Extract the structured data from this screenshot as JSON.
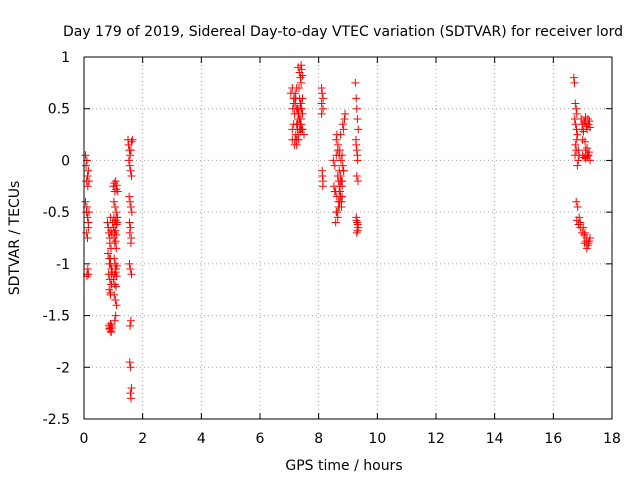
{
  "chart_data": {
    "type": "scatter",
    "title": "Day 179 of 2019, Sidereal Day-to-day VTEC variation (SDTVAR) for receiver lord",
    "xlabel": "GPS time / hours",
    "ylabel": "SDTVAR / TECUs",
    "xlim": [
      0,
      18
    ],
    "ylim": [
      -2.5,
      1
    ],
    "xticks": [
      "0",
      "2",
      "4",
      "6",
      "8",
      "10",
      "12",
      "14",
      "16",
      "18"
    ],
    "xtick_values": [
      0,
      2,
      4,
      6,
      8,
      10,
      12,
      14,
      16,
      18
    ],
    "yticks": [
      "1",
      "0.5",
      "0",
      "-0.5",
      "-1",
      "-1.5",
      "-2",
      "-2.5"
    ],
    "ytick_values": [
      1,
      0.5,
      0,
      -0.5,
      -1,
      -1.5,
      -2,
      -2.5
    ],
    "grid": true,
    "marker": "+",
    "color": "#ff0000",
    "series": [
      {
        "name": "SDTVAR",
        "x": [
          0.05,
          0.07,
          0.08,
          0.1,
          0.12,
          0.13,
          0.15,
          0.17,
          0.05,
          0.08,
          0.1,
          0.12,
          0.15,
          0.17,
          0.08,
          0.12,
          0.15,
          0.1,
          0.13,
          0.1,
          0.15,
          0.8,
          0.83,
          0.85,
          0.88,
          0.9,
          0.92,
          0.95,
          0.97,
          0.82,
          0.86,
          0.9,
          0.93,
          0.96,
          0.84,
          0.88,
          0.92,
          0.95,
          0.86,
          0.9,
          0.94,
          0.85,
          0.88,
          0.91,
          0.94,
          0.86,
          0.9,
          0.93,
          0.96,
          0.88,
          0.92,
          0.87,
          0.9,
          0.94,
          0.9,
          1.0,
          1.03,
          1.05,
          1.08,
          1.1,
          1.12,
          1.15,
          1.02,
          1.05,
          1.08,
          1.11,
          1.14,
          1.0,
          1.04,
          1.07,
          1.1,
          1.13,
          1.02,
          1.05,
          1.08,
          1.1,
          1.03,
          1.06,
          1.09,
          1.12,
          1.04,
          1.08,
          1.11,
          1.05,
          1.09,
          1.02,
          1.06,
          1.1,
          1.13,
          1.0,
          1.03,
          1.07,
          1.11,
          1.05,
          1.08,
          1.5,
          1.52,
          1.55,
          1.57,
          1.6,
          1.62,
          1.65,
          1.53,
          1.56,
          1.59,
          1.62,
          1.54,
          1.57,
          1.6,
          1.63,
          1.55,
          1.58,
          1.61,
          1.56,
          1.6,
          1.55,
          1.58,
          1.62,
          1.57,
          1.6,
          1.56,
          1.59,
          1.62,
          1.58,
          1.6,
          7.05,
          7.1,
          7.15,
          7.2,
          7.25,
          7.3,
          7.35,
          7.4,
          7.45,
          7.5,
          7.1,
          7.15,
          7.2,
          7.25,
          7.3,
          7.35,
          7.4,
          7.45,
          7.12,
          7.18,
          7.22,
          7.28,
          7.32,
          7.38,
          7.42,
          7.15,
          7.2,
          7.25,
          7.3,
          7.35,
          7.4,
          7.1,
          7.18,
          7.25,
          7.32,
          7.38,
          7.2,
          7.28,
          7.35,
          7.42,
          7.22,
          7.3,
          7.38,
          7.25,
          7.33,
          7.4,
          7.28,
          7.35,
          7.45,
          7.3,
          7.42,
          7.35,
          7.4,
          7.38,
          7.45,
          7.33,
          7.4,
          8.1,
          8.12,
          8.15,
          8.1,
          8.13,
          8.15,
          8.12,
          8.14,
          8.1,
          8.15,
          8.5,
          8.55,
          8.6,
          8.65,
          8.7,
          8.75,
          8.8,
          8.85,
          8.52,
          8.58,
          8.62,
          8.68,
          8.72,
          8.78,
          8.55,
          8.6,
          8.65,
          8.7,
          8.75,
          8.8,
          8.58,
          8.63,
          8.68,
          8.73,
          8.78,
          8.6,
          8.66,
          8.72,
          8.62,
          8.7,
          8.76,
          8.82,
          8.65,
          8.72,
          8.8,
          8.68,
          8.75,
          8.85,
          8.7,
          8.78,
          8.85,
          8.75,
          8.82,
          8.88,
          8.9,
          8.8,
          9.25,
          9.28,
          9.3,
          9.32,
          9.35,
          9.27,
          9.3,
          9.33,
          9.28,
          9.32,
          9.3,
          9.34,
          9.28,
          9.31,
          9.35,
          9.3,
          9.33,
          9.29,
          9.32,
          16.7,
          16.72,
          16.75,
          16.78,
          16.8,
          16.73,
          16.76,
          16.79,
          16.82,
          16.74,
          16.78,
          16.82,
          16.85,
          16.75,
          16.8,
          16.85,
          16.88,
          16.78,
          16.83,
          16.88,
          16.92,
          16.8,
          16.86,
          16.92,
          16.95,
          17.0,
          17.05,
          17.1,
          17.15,
          17.2,
          17.25,
          16.98,
          17.03,
          17.08,
          17.13,
          17.18,
          17.23,
          17.0,
          17.05,
          17.1,
          17.15,
          17.2,
          17.02,
          17.08,
          17.14,
          17.2,
          17.05,
          17.12,
          17.18,
          17.25,
          16.98,
          17.06,
          17.14,
          17.22,
          17.1,
          17.18,
          17.25,
          17.0,
          17.08,
          17.15,
          17.22
        ],
        "y": [
          0.05,
          -0.05,
          -0.2,
          0.0,
          -0.15,
          -0.25,
          -0.1,
          -0.2,
          -0.4,
          -0.5,
          -0.45,
          -0.55,
          -0.6,
          -0.5,
          -0.7,
          -0.75,
          -0.65,
          -1.1,
          -1.05,
          -1.12,
          -1.1,
          -0.6,
          -0.65,
          -0.7,
          -0.75,
          -0.55,
          -0.68,
          -0.72,
          -0.6,
          -0.9,
          -0.95,
          -1.0,
          -1.05,
          -1.08,
          -1.1,
          -1.15,
          -1.2,
          -1.05,
          -1.25,
          -1.3,
          -1.2,
          -1.6,
          -1.62,
          -1.65,
          -1.6,
          -1.63,
          -1.58,
          -1.66,
          -1.62,
          -0.8,
          -0.85,
          -1.0,
          -0.95,
          -1.1,
          -1.28,
          -0.25,
          -0.22,
          -0.3,
          -0.2,
          -0.28,
          -0.24,
          -0.3,
          -0.55,
          -0.6,
          -0.58,
          -0.62,
          -0.55,
          -0.65,
          -0.7,
          -0.68,
          -0.72,
          -0.6,
          -0.75,
          -0.8,
          -0.78,
          -0.85,
          -0.95,
          -1.0,
          -1.05,
          -1.02,
          -1.1,
          -1.08,
          -1.12,
          -1.2,
          -1.22,
          -0.4,
          -0.45,
          -0.5,
          -0.55,
          -1.15,
          -1.3,
          -1.35,
          -1.4,
          -1.55,
          -1.5,
          0.2,
          0.15,
          0.1,
          0.05,
          0.1,
          0.18,
          0.2,
          0.0,
          -0.05,
          -0.1,
          -0.15,
          -0.35,
          -0.4,
          -0.45,
          -0.5,
          -0.6,
          -0.65,
          -0.75,
          -0.7,
          -0.8,
          -1.0,
          -1.05,
          -1.1,
          -1.6,
          -1.55,
          -1.95,
          -2.0,
          -2.2,
          -2.25,
          -2.3,
          0.65,
          0.7,
          0.6,
          0.55,
          0.5,
          0.45,
          0.4,
          0.35,
          0.3,
          0.25,
          0.3,
          0.35,
          0.2,
          0.15,
          0.25,
          0.4,
          0.55,
          0.6,
          0.5,
          0.45,
          0.6,
          0.35,
          0.2,
          0.3,
          0.5,
          0.55,
          0.65,
          0.7,
          0.4,
          0.3,
          0.5,
          0.2,
          0.15,
          0.35,
          0.45,
          0.55,
          0.6,
          0.5,
          0.4,
          0.3,
          0.25,
          0.45,
          0.35,
          0.2,
          0.5,
          0.4,
          0.3,
          0.6,
          0.45,
          0.9,
          0.88,
          0.85,
          0.92,
          0.8,
          0.82,
          0.7,
          0.75,
          0.7,
          0.65,
          0.5,
          0.45,
          -0.15,
          -0.2,
          -0.1,
          -0.25,
          0.55,
          0.6,
          0.0,
          -0.05,
          0.05,
          0.1,
          -0.1,
          -0.15,
          -0.2,
          -0.1,
          -0.25,
          -0.3,
          -0.35,
          -0.2,
          -0.4,
          -0.45,
          -0.3,
          -0.5,
          -0.55,
          -0.45,
          -0.35,
          -0.25,
          -0.6,
          -0.5,
          -0.4,
          -0.3,
          -0.2,
          0.2,
          0.15,
          0.1,
          0.25,
          0.05,
          0.0,
          -0.05,
          -0.15,
          -0.25,
          -0.35,
          -0.45,
          -0.2,
          -0.1,
          -0.3,
          -0.4,
          0.3,
          0.25,
          0.35,
          0.4,
          0.45,
          0.05,
          0.75,
          0.6,
          0.5,
          0.4,
          0.3,
          0.2,
          0.1,
          0.0,
          0.15,
          0.05,
          -0.15,
          -0.2,
          -0.55,
          -0.6,
          -0.65,
          -0.7,
          -0.62,
          -0.58,
          -0.68,
          0.8,
          0.75,
          0.55,
          0.5,
          0.45,
          0.4,
          0.35,
          0.3,
          0.25,
          0.05,
          0.1,
          -0.05,
          0.0,
          0.15,
          0.2,
          0.1,
          0.05,
          -0.4,
          -0.45,
          -0.55,
          -0.6,
          -0.58,
          -0.62,
          -0.65,
          0.4,
          0.35,
          0.38,
          0.42,
          0.3,
          0.35,
          0.32,
          0.3,
          0.28,
          0.36,
          0.33,
          0.4,
          0.38,
          0.05,
          0.03,
          0.02,
          0.04,
          0.05,
          -0.65,
          -0.7,
          -0.75,
          -0.8,
          -0.72,
          -0.78,
          -0.82,
          -0.75,
          -0.7,
          -0.8,
          -0.85,
          -0.78,
          0.1,
          0.05,
          0.0,
          0.2,
          0.18,
          0.12,
          0.08
        ]
      }
    ]
  }
}
